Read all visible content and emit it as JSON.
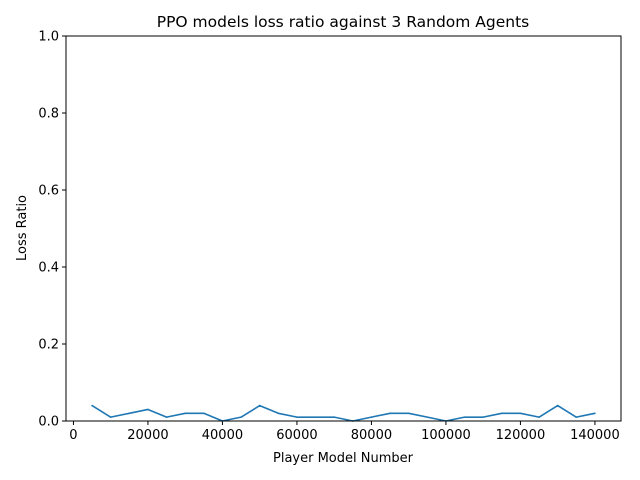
{
  "chart_data": {
    "type": "line",
    "title": "PPO models loss ratio against 3 Random Agents",
    "xlabel": "Player Model Number",
    "ylabel": "Loss Ratio",
    "xlim": [
      -2000,
      147000
    ],
    "ylim": [
      0.0,
      1.0
    ],
    "xticks": [
      0,
      20000,
      40000,
      60000,
      80000,
      100000,
      120000,
      140000
    ],
    "xtick_labels": [
      "0",
      "20000",
      "40000",
      "60000",
      "80000",
      "100000",
      "120000",
      "140000"
    ],
    "yticks": [
      0.0,
      0.2,
      0.4,
      0.6,
      0.8,
      1.0
    ],
    "ytick_labels": [
      "0.0",
      "0.2",
      "0.4",
      "0.6",
      "0.8",
      "1.0"
    ],
    "grid": false,
    "series": [
      {
        "color": "#1f77b4",
        "x": [
          5000,
          10000,
          15000,
          20000,
          25000,
          30000,
          35000,
          40000,
          45000,
          50000,
          55000,
          60000,
          65000,
          70000,
          75000,
          80000,
          85000,
          90000,
          95000,
          100000,
          105000,
          110000,
          115000,
          120000,
          125000,
          130000,
          135000,
          140000
        ],
        "values": [
          0.04,
          0.01,
          0.02,
          0.03,
          0.01,
          0.02,
          0.02,
          0.0,
          0.01,
          0.04,
          0.02,
          0.01,
          0.01,
          0.01,
          0.0,
          0.01,
          0.02,
          0.02,
          0.01,
          0.0,
          0.01,
          0.01,
          0.02,
          0.02,
          0.01,
          0.04,
          0.01,
          0.02
        ]
      }
    ]
  }
}
